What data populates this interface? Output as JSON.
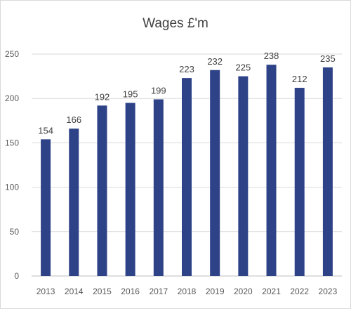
{
  "chart_data": {
    "type": "bar",
    "title": "Wages £'m",
    "categories": [
      "2013",
      "2014",
      "2015",
      "2016",
      "2017",
      "2018",
      "2019",
      "2020",
      "2021",
      "2022",
      "2023"
    ],
    "values": [
      154,
      166,
      192,
      195,
      199,
      223,
      232,
      225,
      238,
      212,
      235
    ],
    "data_labels": [
      "154",
      "166",
      "192",
      "195",
      "199",
      "223",
      "232",
      "225",
      "238",
      "212",
      "235"
    ],
    "ylim": [
      0,
      250
    ],
    "y_ticks": [
      0,
      50,
      100,
      150,
      200,
      250
    ],
    "grid": true,
    "legend": "none",
    "bar_color": "#2e4287"
  }
}
